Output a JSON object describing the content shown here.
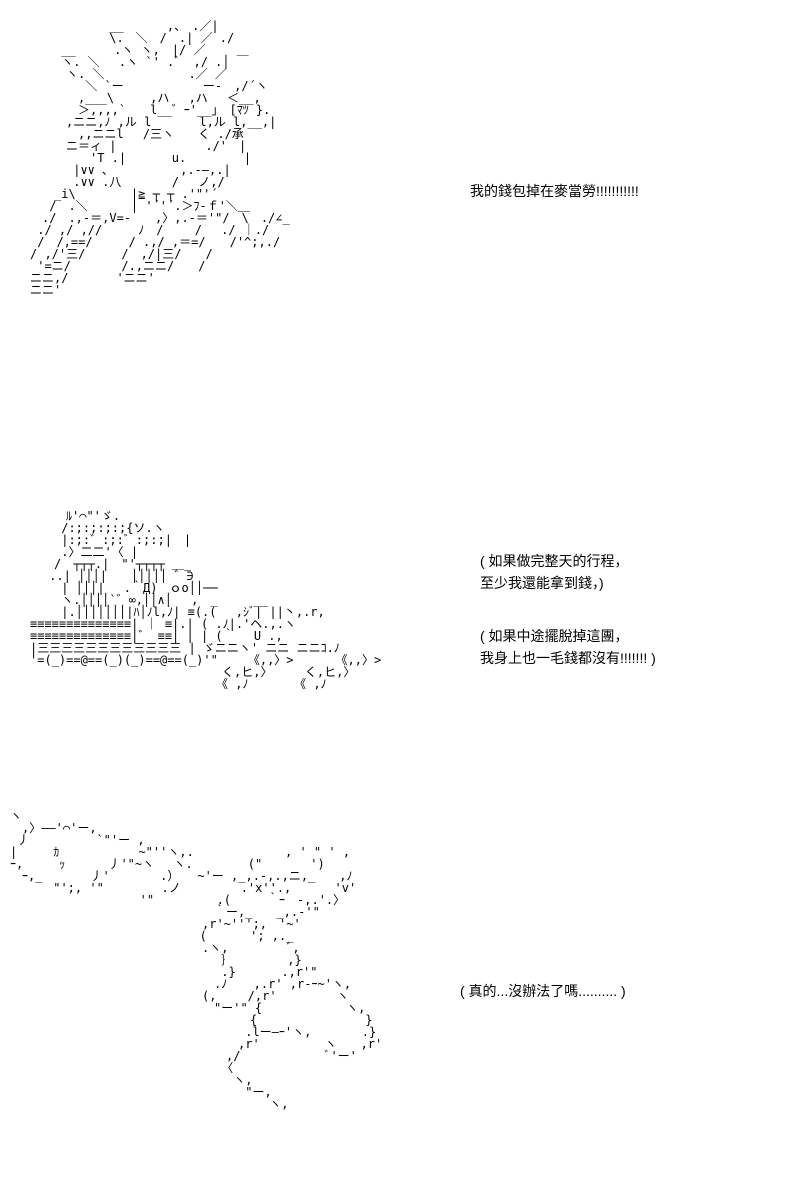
{
  "panel1": {
    "ascii": "　　　　　　 __　　　 ,、　.／|\n　　　　　　 \\.　＼　/　.| ／ ./\n　　 __　 　 .ヽ ヽ,　|/ ／　　 ＿\n　　 ヽ. ＼　 .ヽ `' .゛ ,/ .│\n　　　ヽ. ＼　　　　　　　.／ ／\n　　　　 ＼ `ー　　　　　　 ー‐　,/´ヽ\n　　　　,___\\　　　,ハ　 ,ハ 　＜__,\n　　　　＞,,,,`　　l__゛ｰ'__｣　[ﾏﾂ }.\n　　　,ニニ,ﾉ ,ル l　　　　l,ル l,__,|\n　　　　,,ニニl　 /三ヽ　　く ./承\n　　　ニ＝ィ |　　 　 　 　 ./'　|\n　　　　　'T .| 　 　 u.　 　 　 |\n　　　 |∨∨ ､　　　　　　,.-―,.|\n　　 　.∨∨ .八　 　 　/ 　ノ,/\n　　_i\\　　　　 |≧ ┬ ┬ .'\"'´\n　 /　.＼　　 　| '´'´.＞ﾌ-ｆ'＼＿\n　./　.,-＝,V=-　　,〉,.-＝'\"/　\\　./∠_\n ./ ,/ ,//　　　ﾉ　/　　 /　 ./ ｜./\n /　/,==/　　　/ .,/ ,＝=/　　/'^;,./\n/ ,/'三/　　　/　,/|三/　　/\n '=ニ/　　 　 /.,ニニ/　　/\nニニ,/　　　　'ニニ'\nニニ'",
    "dialogue": "我的錢包掉在麥當勞!!!!!!!!!!!"
  },
  "panel2": {
    "ascii": "　　　ﾙ'⌒\"'ゞ.\n　　 /:;:;:;:;{ソ.ヽ\n　 　|:;:゛:;:゛:;:;|　|\n　　 .〉二二'〈 |\n　　/　┬┬┬.|　\"'┬┬┬┬ ＿_\n　 ..| │││|　　│││││ ゛∋\n　　 | │││|　 .｀Д)　ｏo││──\n　　 ヽ.││││`゛∞,││∧│　 ,　_　　　__\n　　 |.│││││││|ﾊ│ﾉl,ﾉ| ≡(.(　 ,ｼﾞ| ||丶,.r,\n≡≡≡≡≡≡≡≡≡≡≡≡≡≡| ｜ ≡|.| ( .ﾉ|.'ヘ.,.ヽ\n≡≡≡≡≡≡≡≡≡≡≡≡≡≡|゛ ≡≡| | | (｀　 U .,\n|三三三三三三三三三三三三 | ゞニニヽ' ニニ ニニｺ.ﾉ\n'=(_)==@==(_)(_)==@==(_)'\"　　　《,,〉>　　　　《,,〉>\n　　　　　　　　　　　　　　　　く,ヒ,〉　 　 く,ヒ,〉\n　　　　　　　　　　　　　　　　《 ,ﾉ 　 　 《 ,ﾉ",
    "dialogue1": "( 如果做完整天的行程，\n至少我還能拿到錢，)",
    "dialogue2": "( 如果中途擺脫掉這團，\n我身上也一毛錢都沒有!!!!!!! )"
  },
  "panel3": {
    "ascii": "ヽ\n　,〉――'⌒'ー,\n 丿　　　　　 `\"'ー ,\n|　　　ｶ　　　　　　 ~\"''ヽ,.　　　　　　　 , ' \" ' ,\nｰ,　　　ｯ　　　 丿'\"~ヽ　 ヽ.　　　　 (\"　　　　')\n　ｰ,_　　　　丿'　　 　 .）　　~'ー ,_,.-,.,ニ,_　　,ﾉ\n　　 　\"';, '\" 　 　 　.ノ　　　　　.'x''.,　　　 'v'\n　　　　　　　 　 　 '\"　　　 　 .(　　　｀ｰ　-,.'.〉\n　　　　　　　　　　　　　　　　　｀ー,_　　_,.-'\"\n　　　　　　　　　　　　　　　　,r'~''';,　'~'\n　　　　　　　　　　　 　 　 　(　　　 '; ,._\n　　　　　　　　　　　　　　　　.ヽ,　　　 　 ﾞ,\n　　　　　　　　　　　　　　　　　 ｝　　　　　,}\n　　　　　　　　　　　　　　　　　 .} 　 　 .,r'\"\n　　　　　　　　　　　　　　　　　.ﾉ 　 ,.r' ,r-ｰ~'ヽ,\n　　　　　　　　　　　　　　　　(,　 　/,r'　　　　　ヽ\n　　　　　　　　　　　　　　　　　\"ー'\" {　　　　　　　ヽ,\n　　　　　　　　　　　　　　　　　　　　{　　　　　　　　　}\n　　　　　　　　　　　　　　　　　　　 .lー―ｰ'ヽ,　　 　 .}\n　　　　　　　　　　　　　　　　　　　,r' 　 　 　 ヽ　　,r'\n　　　　　　　　　　　　　　　　　　,/　　　　　　　ﾞ'ー'\n　　　　　　　　　　　　　　　　　 〈\n　　　　　　　　　　　　　　　　　　 ヽ,\n　　　　　　　　　　　　　　　　　　　 \"ー,\n　　　　　　　　　　　　　　　　　　　　　 ヽ,",
    "dialogue": "( 真的...沒辦法了嗎.......... )"
  },
  "colors": {
    "background": "#ffffff",
    "text": "#000000"
  },
  "typography": {
    "ascii_font": "MS PGothic",
    "dialogue_font": "Microsoft YaHei",
    "ascii_size": 12,
    "dialogue_size": 14
  }
}
